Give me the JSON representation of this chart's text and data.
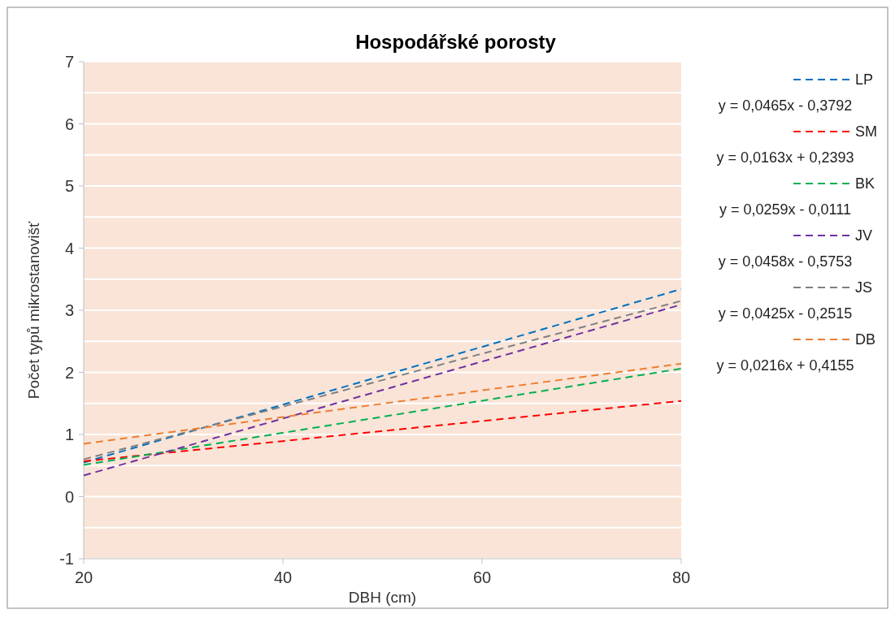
{
  "chart_data": {
    "type": "line",
    "title": "Hospodářské porosty",
    "xlabel": "DBH (cm)",
    "ylabel": "Počet typů mikrostanovišť",
    "x": [
      20,
      80
    ],
    "xlim": [
      20,
      80
    ],
    "xticks": [
      20,
      40,
      60,
      80
    ],
    "ylim": [
      -1,
      7
    ],
    "yticks": [
      -1,
      {
        "value": -0.5,
        "label": null
      },
      0,
      {
        "value": 0.5,
        "label": null
      },
      1,
      {
        "value": 1.5,
        "label": null
      },
      2,
      {
        "value": 2.5,
        "label": null
      },
      3,
      {
        "value": 3.5,
        "label": null
      },
      4,
      {
        "value": 4.5,
        "label": null
      },
      5,
      {
        "value": 5.5,
        "label": null
      },
      6,
      {
        "value": 6.5,
        "label": null
      },
      7
    ],
    "grid": "y",
    "legend": "right",
    "line_style": "dashed",
    "marker": "none",
    "series": [
      {
        "name": "LP",
        "color": "#0070c0",
        "values": [
          0.55,
          3.34
        ]
      },
      {
        "name": "SM",
        "color": "#ff0000",
        "values": [
          0.57,
          1.54
        ]
      },
      {
        "name": "BK",
        "color": "#00b050",
        "values": [
          0.51,
          2.06
        ]
      },
      {
        "name": "JV",
        "color": "#7030a0",
        "values": [
          0.34,
          3.09
        ]
      },
      {
        "name": "JS",
        "color": "#808080",
        "values": [
          0.6,
          3.15
        ]
      },
      {
        "name": "DB",
        "color": "#ed7d31",
        "values": [
          0.85,
          2.14
        ]
      }
    ],
    "annotations": [
      "y = 0,0465x - 0,3792",
      "y = 0,0163x + 0,2393",
      "y = 0,0259x - 0,0111",
      "y = 0,0458x - 0,5753",
      "y = 0,0425x - 0,2515",
      "y = 0,0216x + 0,4155"
    ]
  }
}
